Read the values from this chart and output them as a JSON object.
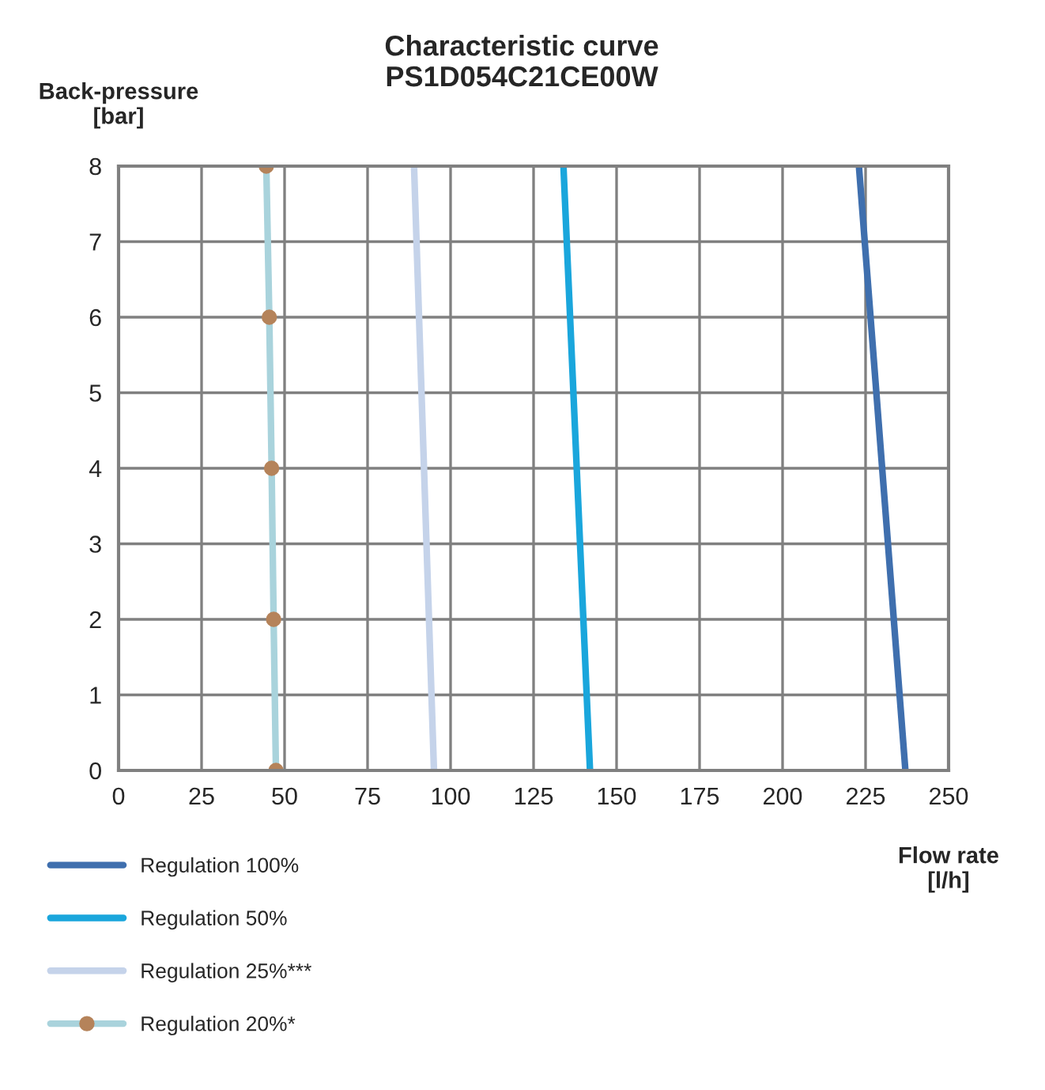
{
  "chart_data": {
    "type": "line",
    "title": "Characteristic curve\nPS1D054C21CE00W",
    "xlabel": "Flow rate\n[l/h]",
    "ylabel": "Back-pressure\n[bar]",
    "series": [
      {
        "name": "Regulation 100%",
        "color": "#3f6fae",
        "x": [
          237,
          223
        ],
        "values": [
          0,
          8
        ]
      },
      {
        "name": "Regulation 50%",
        "color": "#1aa6dc",
        "x": [
          142,
          134
        ],
        "values": [
          0,
          8
        ]
      },
      {
        "name": "Regulation 25%***",
        "color": "#c5d3ea",
        "x": [
          95,
          89
        ],
        "values": [
          0,
          8
        ]
      },
      {
        "name": "Regulation 20%*",
        "color": "#a9d3dc",
        "marker": "circle",
        "colors": [
          "#b5835a",
          "#b5835a",
          "#b5835a",
          "#b5835a",
          "#b5835a"
        ],
        "x": [
          47.4,
          46.7,
          46.1,
          45.4,
          44.5
        ],
        "values": [
          0,
          2,
          4,
          6,
          8
        ]
      }
    ],
    "xlim": [
      0,
      250
    ],
    "xticks": [
      0,
      25,
      50,
      75,
      100,
      125,
      150,
      175,
      200,
      225,
      250
    ],
    "ylim": [
      0,
      8
    ],
    "yticks": [
      0,
      1,
      2,
      3,
      4,
      5,
      6,
      7,
      8
    ],
    "grid": true,
    "legend": "bottom left"
  }
}
